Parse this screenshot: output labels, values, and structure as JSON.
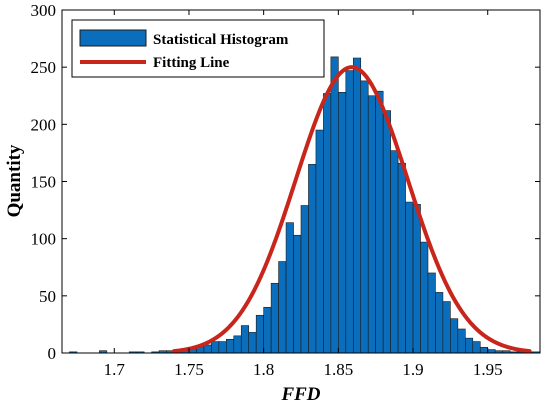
{
  "chart_data": {
    "type": "bar",
    "xlabel": "FFD",
    "ylabel": "Quantity",
    "xlim": [
      1.665,
      1.985
    ],
    "ylim": [
      0,
      300
    ],
    "xticks": [
      "1.7",
      "1.75",
      "1.8",
      "1.85",
      "1.9",
      "1.95"
    ],
    "xtick_values": [
      1.7,
      1.75,
      1.8,
      1.85,
      1.9,
      1.95
    ],
    "yticks": [
      "0",
      "50",
      "100",
      "150",
      "200",
      "250",
      "300"
    ],
    "ytick_values": [
      0,
      50,
      100,
      150,
      200,
      250,
      300
    ],
    "grid": false,
    "legend_position": "top-left",
    "series": [
      {
        "name": "Statistical Histogram",
        "kind": "histogram",
        "color": "#0a6ebd",
        "edge_color": "#1a1a1a",
        "bin_width": 0.005,
        "bin_start": 1.665,
        "counts": [
          0,
          1,
          0,
          0,
          0,
          2,
          0,
          0,
          0,
          1,
          1,
          0,
          1,
          2,
          2,
          2,
          4,
          4,
          6,
          7,
          10,
          10,
          12,
          15,
          24,
          18,
          33,
          40,
          61,
          80,
          114,
          103,
          129,
          165,
          195,
          227,
          259,
          228,
          247,
          258,
          238,
          225,
          229,
          212,
          177,
          166,
          132,
          130,
          97,
          70,
          53,
          45,
          30,
          21,
          13,
          10,
          5,
          3,
          2,
          2,
          1,
          1,
          1,
          1
        ]
      },
      {
        "name": "Fitting Line",
        "kind": "line",
        "color": "#c8261c",
        "x_range": [
          1.74,
          1.978
        ],
        "mean": 1.859,
        "sd": 0.0375,
        "peak": 250
      }
    ]
  }
}
